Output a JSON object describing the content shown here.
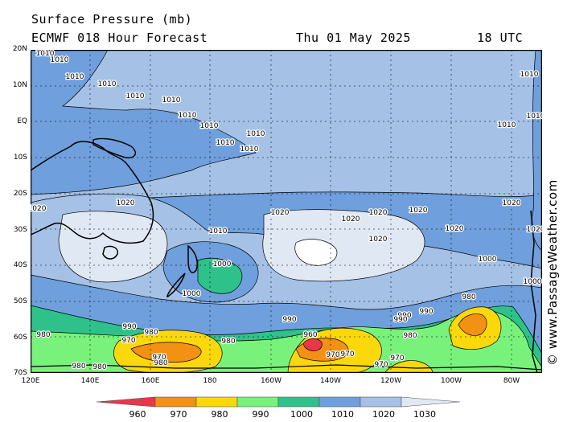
{
  "header": {
    "title": "Surface Pressure (mb)",
    "model": "ECMWF 018 Hour Forecast",
    "valid_date": "Thu 01 May 2025",
    "valid_time": "18 UTC"
  },
  "credit": "© www.PassageWeather.com",
  "map": {
    "lat_labels": [
      "20N",
      "10N",
      "EQ",
      "10S",
      "20S",
      "30S",
      "40S",
      "50S",
      "60S",
      "70S"
    ],
    "lon_labels": [
      "120E",
      "140E",
      "160E",
      "180",
      "160W",
      "140W",
      "120W",
      "100W",
      "80W"
    ],
    "contour_labels": [
      {
        "text": "1020"
      },
      {
        "text": "1020"
      },
      {
        "text": "1020"
      },
      {
        "text": "1020"
      },
      {
        "text": "1020"
      },
      {
        "text": "1020"
      },
      {
        "text": "1020"
      },
      {
        "text": "1020"
      },
      {
        "text": "1020"
      },
      {
        "text": "1020"
      },
      {
        "text": "1010"
      },
      {
        "text": "1010"
      },
      {
        "text": "1010"
      },
      {
        "text": "1010"
      },
      {
        "text": "1010"
      },
      {
        "text": "1010"
      },
      {
        "text": "1010"
      },
      {
        "text": "1010"
      },
      {
        "text": "1010"
      },
      {
        "text": "1010"
      },
      {
        "text": "1010"
      },
      {
        "text": "1010"
      },
      {
        "text": "1010"
      },
      {
        "text": "1010"
      },
      {
        "text": "1010"
      },
      {
        "text": "1000"
      },
      {
        "text": "1000"
      },
      {
        "text": "1000"
      },
      {
        "text": "1000"
      },
      {
        "text": "990"
      },
      {
        "text": "990"
      },
      {
        "text": "990"
      },
      {
        "text": "990"
      },
      {
        "text": "990"
      },
      {
        "text": "980"
      },
      {
        "text": "980"
      },
      {
        "text": "980"
      },
      {
        "text": "980"
      },
      {
        "text": "980"
      },
      {
        "text": "980"
      },
      {
        "text": "980"
      },
      {
        "text": "980"
      },
      {
        "text": "970"
      },
      {
        "text": "970"
      },
      {
        "text": "970"
      },
      {
        "text": "970"
      },
      {
        "text": "970"
      },
      {
        "text": "970"
      },
      {
        "text": "960"
      }
    ]
  },
  "colorbar": {
    "labels": [
      "960",
      "970",
      "980",
      "990",
      "1000",
      "1010",
      "1020",
      "1030"
    ],
    "colors": [
      "#e8374a",
      "#f39114",
      "#fbd80a",
      "#78f27a",
      "#2ec28a",
      "#6f9fdc",
      "#a5c1e6",
      "#e0e8f4"
    ]
  }
}
